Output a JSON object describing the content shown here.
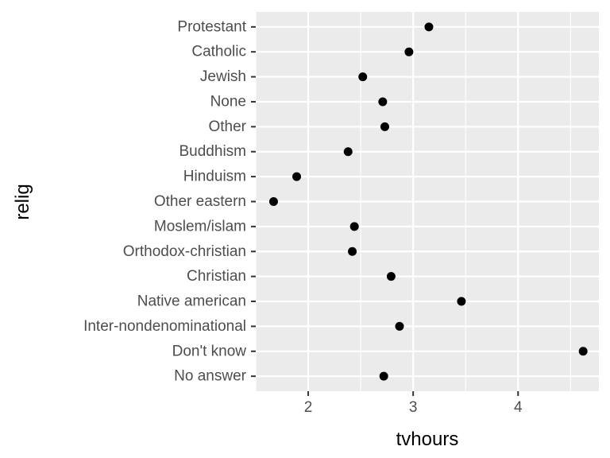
{
  "chart_data": {
    "type": "scatter",
    "title": "",
    "xlabel": "tvhours",
    "ylabel": "relig",
    "categories": [
      "Protestant",
      "Catholic",
      "Jewish",
      "None",
      "Other",
      "Buddhism",
      "Hinduism",
      "Other eastern",
      "Moslem/islam",
      "Orthodox-christian",
      "Christian",
      "Native american",
      "Inter-nondenominational",
      "Don't know",
      "No answer"
    ],
    "values": [
      3.15,
      2.96,
      2.52,
      2.71,
      2.73,
      2.38,
      1.89,
      1.67,
      2.44,
      2.42,
      2.79,
      3.46,
      2.87,
      4.62,
      2.72
    ],
    "xlim": [
      1.5,
      4.77
    ],
    "xticks": [
      2,
      3,
      4
    ],
    "xtick_labels": [
      "2",
      "3",
      "4"
    ],
    "grid": true,
    "colors": {
      "panel": "#ebebeb",
      "grid": "#ffffff",
      "point": "#000000",
      "tick_text": "#4d4d4d",
      "axis_text": "#000000"
    }
  }
}
